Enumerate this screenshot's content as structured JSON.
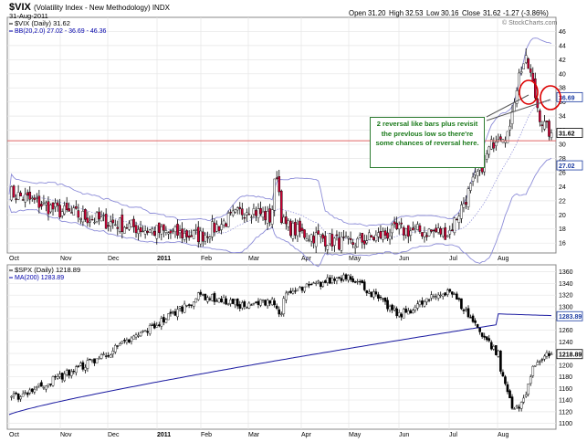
{
  "chart_data": [
    {
      "type": "candlestick",
      "symbol": "$VIX",
      "title": "(Volatility Index - New Methodology) INDX",
      "date": "31-Aug-2011",
      "header": {
        "open_label": "Open",
        "open": "31.20",
        "high_label": "High",
        "high": "32.53",
        "low_label": "Low",
        "low": "30.16",
        "close_label": "Close",
        "close": "31.62",
        "change": "-1.27 (-3.86%)"
      },
      "watermark": "© StockCharts.com",
      "legend": [
        {
          "label": "$VIX (Daily) 31.62",
          "color": "#000000"
        },
        {
          "label": "BB(20,2.0) 27.02 - 36.69 - 46.36",
          "color": "#0000aa"
        }
      ],
      "y_ticks": [
        16,
        18,
        20,
        22,
        24,
        26,
        28,
        30,
        32,
        34,
        36,
        38,
        40,
        42,
        44,
        46
      ],
      "ylim": [
        14.6,
        48.0
      ],
      "x_ticks": [
        "Oct",
        "Nov",
        "Dec",
        "2011",
        "Feb",
        "Mar",
        "Apr",
        "May",
        "Jun",
        "Jul",
        "Aug"
      ],
      "value_labels": [
        {
          "text": "36.69",
          "value": 36.69,
          "color": "#1a3aa0"
        },
        {
          "text": "31.62",
          "value": 31.62,
          "color": "#000000"
        },
        {
          "text": "27.02",
          "value": 27.02,
          "color": "#1a3aa0"
        }
      ],
      "horizontal_line": 30.5,
      "annotation": "2 reversal like bars plus revisit the prevlous low so there're some chances of reversal here.",
      "anchors": [
        {
          "month": "Oct",
          "value": 23.2
        },
        {
          "month": "Nov",
          "value": 20.5
        },
        {
          "month": "Dec",
          "value": 19.0
        },
        {
          "month": "2011",
          "value": 17.6
        },
        {
          "month": "Feb",
          "value": 17.0
        },
        {
          "month": "Mar",
          "value": 21.0
        },
        {
          "month": "Apr",
          "value": 17.4
        },
        {
          "month": "May",
          "value": 15.8
        },
        {
          "month": "Jun",
          "value": 17.8
        },
        {
          "month": "Jul",
          "value": 17.5
        },
        {
          "month": "Aug",
          "value": 31.6
        }
      ]
    },
    {
      "type": "candlestick",
      "symbol": "$SPX",
      "legend": [
        {
          "label": "$SPX (Daily) 1218.89",
          "color": "#000000"
        },
        {
          "label": "MA(200) 1283.89",
          "color": "#0000aa"
        }
      ],
      "y_ticks": [
        1100,
        1120,
        1140,
        1160,
        1180,
        1200,
        1220,
        1240,
        1260,
        1280,
        1300,
        1320,
        1340,
        1360
      ],
      "ylim": [
        1090,
        1372
      ],
      "x_ticks": [
        "Oct",
        "Nov",
        "Dec",
        "2011",
        "Feb",
        "Mar",
        "Apr",
        "May",
        "Jun",
        "Jul",
        "Aug"
      ],
      "value_labels": [
        {
          "text": "1283.89",
          "value": 1283.89,
          "color": "#1a3aa0"
        },
        {
          "text": "1218.89",
          "value": 1218.89,
          "color": "#000000"
        }
      ],
      "ma200": {
        "start": 1115,
        "end": 1283.89
      },
      "anchors": [
        {
          "month": "Oct",
          "value": 1140
        },
        {
          "month": "Nov",
          "value": 1180
        },
        {
          "month": "Dec",
          "value": 1220
        },
        {
          "month": "2011",
          "value": 1270
        },
        {
          "month": "Feb",
          "value": 1320
        },
        {
          "month": "Mar",
          "value": 1300
        },
        {
          "month": "Apr",
          "value": 1330
        },
        {
          "month": "May",
          "value": 1355
        },
        {
          "month": "Jun",
          "value": 1285
        },
        {
          "month": "Jul",
          "value": 1330
        },
        {
          "month": "Aug",
          "value": 1218.89
        }
      ]
    }
  ]
}
